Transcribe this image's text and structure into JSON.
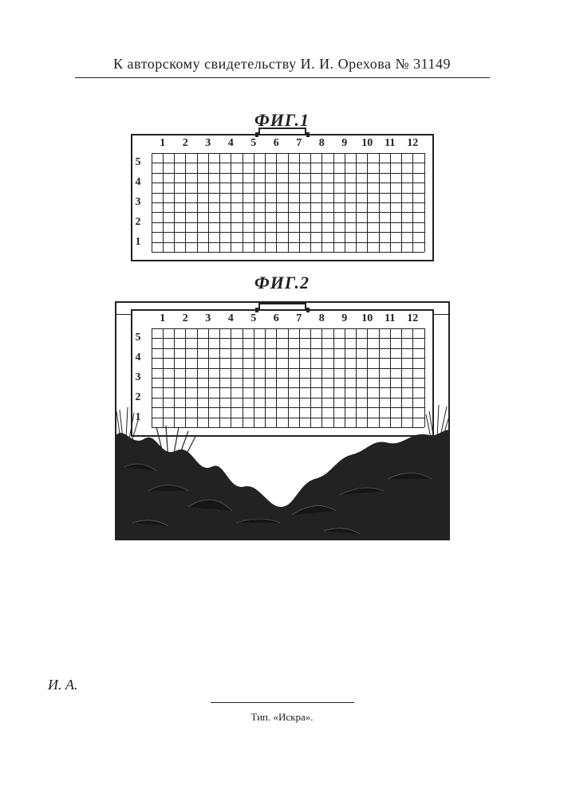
{
  "header": {
    "certificate_line": "К авторскому свидетельству И. И. Орехова № 31149"
  },
  "fig1": {
    "label": "ФИГ.1",
    "columns": [
      "1",
      "2",
      "3",
      "4",
      "5",
      "6",
      "7",
      "8",
      "9",
      "10",
      "11",
      "12"
    ],
    "rows_top_to_bottom": [
      "5",
      "4",
      "3",
      "2",
      "1"
    ],
    "cols_count": 24,
    "row_cells": 10,
    "frame_color": "#222222",
    "line_color": "#222222",
    "background": "#ffffff"
  },
  "fig2": {
    "label": "ФИГ.2",
    "columns": [
      "1",
      "2",
      "3",
      "4",
      "5",
      "6",
      "7",
      "8",
      "9",
      "10",
      "11",
      "12"
    ],
    "rows_top_to_bottom": [
      "5",
      "4",
      "3",
      "2",
      "1"
    ],
    "cols_count": 24,
    "row_cells": 10,
    "frame_color": "#222222",
    "line_color": "#222222",
    "terrain_color": "#222222"
  },
  "footer": {
    "initials": "И. А.",
    "typography_line": "Тип. «Искра»."
  }
}
